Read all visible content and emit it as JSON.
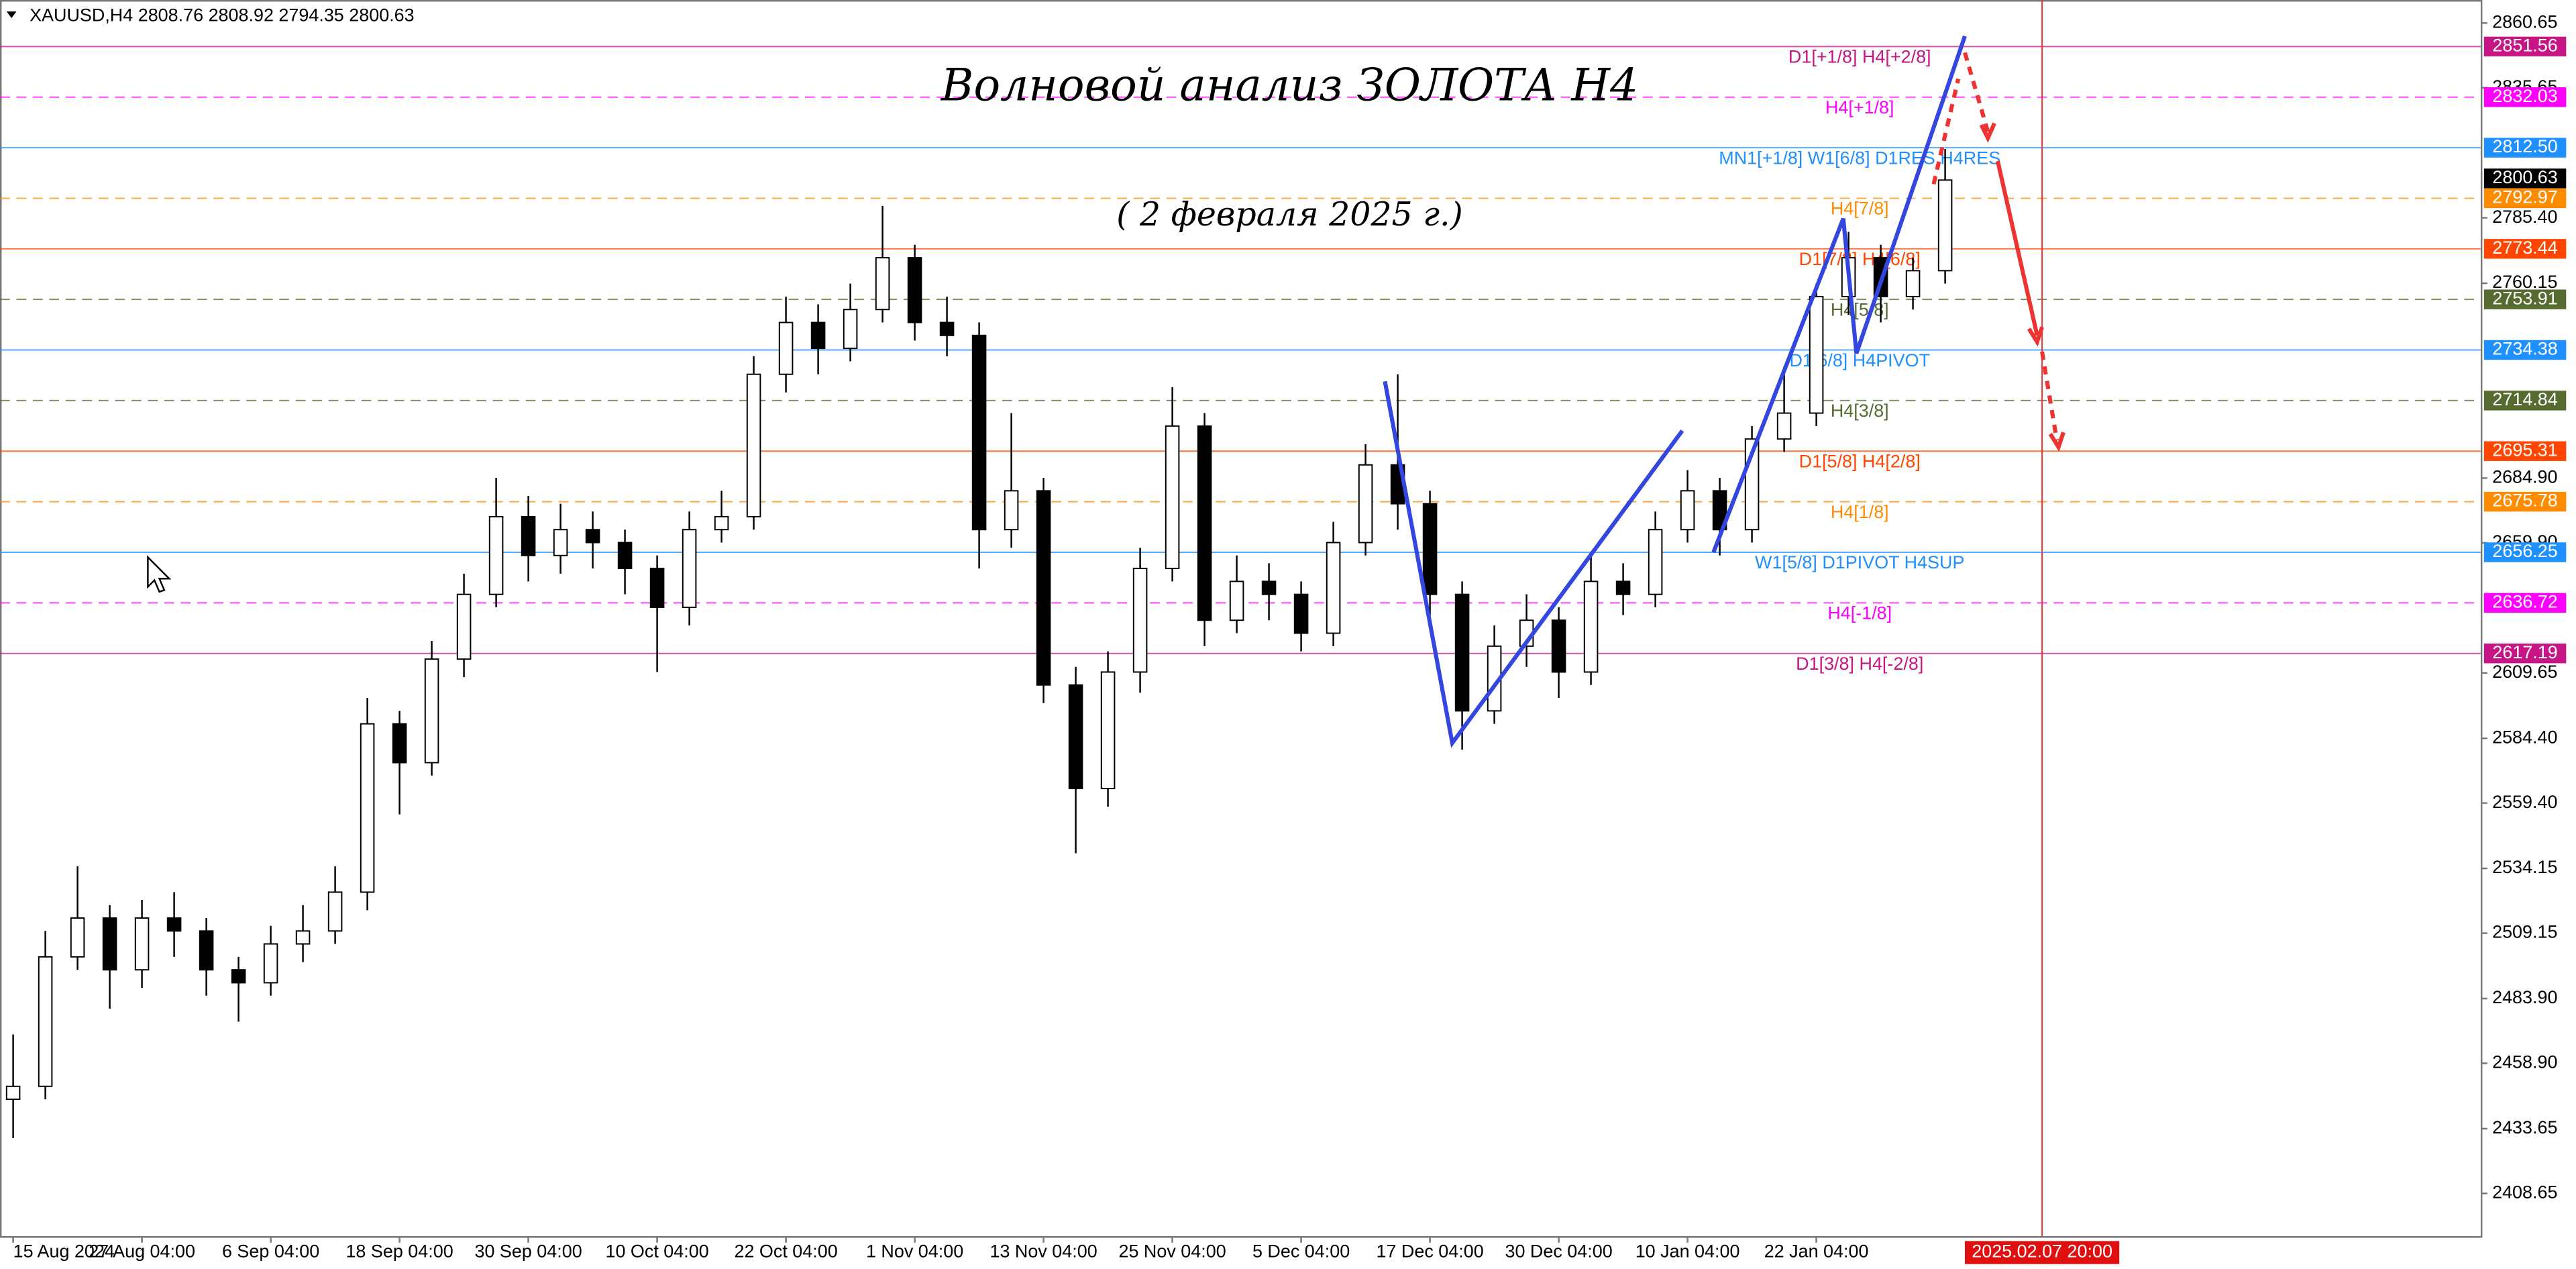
{
  "chart_data": {
    "type": "candlestick",
    "header": "XAUUSD,H4  2808.76 2808.92 2794.35 2800.63",
    "title": "Волновой анализ ЗОЛОТА H4",
    "subtitle": "( 2 февраля 2025 г.)",
    "categories": [
      "15 Aug 2024",
      null,
      null,
      null,
      "27 Aug 04:00",
      null,
      null,
      null,
      "6 Sep 04:00",
      null,
      null,
      null,
      "18 Sep 04:00",
      null,
      null,
      null,
      "30 Sep 04:00",
      null,
      null,
      null,
      "10 Oct 04:00",
      null,
      null,
      null,
      "22 Oct 04:00",
      null,
      null,
      null,
      "1 Nov 04:00",
      null,
      null,
      null,
      "13 Nov 04:00",
      null,
      null,
      null,
      "25 Nov 04:00",
      null,
      null,
      null,
      "5 Dec 04:00",
      null,
      null,
      null,
      "17 Dec 04:00",
      null,
      null,
      null,
      "30 Dec 04:00",
      null,
      null,
      null,
      "10 Jan 04:00",
      null,
      null,
      null,
      "22 Jan 04:00",
      null,
      null,
      null,
      null
    ],
    "open": [
      2445,
      2450,
      2500,
      2515,
      2495,
      2515,
      2510,
      2495,
      2490,
      2505,
      2510,
      2525,
      2590,
      2575,
      2615,
      2640,
      2670,
      2655,
      2665,
      2660,
      2650,
      2635,
      2665,
      2670,
      2725,
      2745,
      2735,
      2750,
      2770,
      2745,
      2740,
      2665,
      2680,
      2605,
      2565,
      2610,
      2650,
      2705,
      2630,
      2645,
      2640,
      2625,
      2660,
      2690,
      2675,
      2640,
      2595,
      2620,
      2630,
      2610,
      2645,
      2640,
      2665,
      2680,
      2665,
      2700,
      2710,
      2755,
      2770,
      2755,
      2765
    ],
    "high": [
      2470,
      2510,
      2535,
      2520,
      2522,
      2525,
      2515,
      2500,
      2512,
      2520,
      2535,
      2600,
      2595,
      2622,
      2648,
      2685,
      2678,
      2675,
      2672,
      2665,
      2655,
      2672,
      2680,
      2732,
      2755,
      2752,
      2760,
      2790,
      2775,
      2755,
      2745,
      2710,
      2685,
      2612,
      2618,
      2658,
      2720,
      2710,
      2655,
      2652,
      2645,
      2668,
      2698,
      2725,
      2680,
      2645,
      2628,
      2640,
      2635,
      2655,
      2652,
      2672,
      2688,
      2685,
      2705,
      2728,
      2760,
      2780,
      2775,
      2770,
      2812
    ],
    "low": [
      2430,
      2445,
      2495,
      2480,
      2488,
      2500,
      2485,
      2475,
      2485,
      2498,
      2505,
      2518,
      2555,
      2570,
      2608,
      2635,
      2645,
      2648,
      2650,
      2640,
      2610,
      2628,
      2660,
      2665,
      2718,
      2725,
      2730,
      2745,
      2738,
      2732,
      2650,
      2658,
      2598,
      2540,
      2558,
      2602,
      2645,
      2620,
      2625,
      2630,
      2618,
      2620,
      2655,
      2665,
      2632,
      2580,
      2590,
      2612,
      2600,
      2605,
      2632,
      2635,
      2660,
      2655,
      2660,
      2695,
      2705,
      2748,
      2745,
      2750,
      2760
    ],
    "close": [
      2450,
      2500,
      2515,
      2495,
      2515,
      2510,
      2495,
      2490,
      2505,
      2510,
      2525,
      2590,
      2575,
      2615,
      2640,
      2670,
      2655,
      2665,
      2660,
      2650,
      2635,
      2665,
      2670,
      2725,
      2745,
      2735,
      2750,
      2770,
      2745,
      2740,
      2665,
      2680,
      2605,
      2565,
      2610,
      2650,
      2705,
      2630,
      2645,
      2640,
      2625,
      2660,
      2690,
      2675,
      2640,
      2595,
      2620,
      2630,
      2610,
      2645,
      2640,
      2665,
      2680,
      2665,
      2700,
      2710,
      2755,
      2770,
      2755,
      2765,
      2800
    ],
    "ylim": [
      2392.15,
      2869.54
    ],
    "yticks": [
      2860.65,
      2835.65,
      {
        "value": 2785.4,
        "label": "2785.40"
      },
      2760.15,
      {
        "value": 2684.9,
        "label": "2684.90"
      },
      {
        "value": 2659.9,
        "label": "2659.90"
      },
      2609.65,
      {
        "value": 2584.4,
        "label": "2584.40"
      },
      {
        "value": 2559.4,
        "label": "2559.40"
      },
      2534.15,
      2509.15,
      {
        "value": 2483.9,
        "label": "2483.90"
      },
      {
        "value": 2458.9,
        "label": "2458.90"
      },
      2433.65,
      2408.65
    ],
    "levels": [
      {
        "label": "D1[+1/8] H4[+2/8]",
        "value": 2851.56,
        "color": "#c71585",
        "style": "solid"
      },
      {
        "label": "H4[+1/8]",
        "value": 2832.03,
        "color": "#ff00ff",
        "style": "dashed"
      },
      {
        "label": "MN1[+1/8] W1[6/8] D1RES H4RES",
        "value": 2812.5,
        "value_label": "2812.50",
        "color": "#1e90ff",
        "style": "solid"
      },
      {
        "label": "H4[7/8]",
        "value": 2792.97,
        "color": "#ff8c00",
        "style": "dashed"
      },
      {
        "label": "D1[7/8] H4[6/8]",
        "value": 2773.44,
        "color": "#ff4500",
        "style": "solid"
      },
      {
        "label": "H4[5/8]",
        "value": 2753.91,
        "color": "#556b2f",
        "style": "dashed"
      },
      {
        "label": "D1[6/8] H4PIVOT",
        "value": 2734.38,
        "color": "#1e90ff",
        "style": "solid"
      },
      {
        "label": "H4[3/8]",
        "value": 2714.84,
        "color": "#556b2f",
        "style": "dashed"
      },
      {
        "label": "D1[5/8] H4[2/8]",
        "value": 2695.31,
        "color": "#ff4500",
        "style": "solid"
      },
      {
        "label": "H4[1/8]",
        "value": 2675.78,
        "color": "#ff8c00",
        "style": "dashed"
      },
      {
        "label": "W1[5/8] D1PIVOT H4SUP",
        "value": 2656.25,
        "color": "#1e90ff",
        "style": "solid"
      },
      {
        "label": "H4[-1/8]",
        "value": 2636.72,
        "color": "#ff00ff",
        "style": "dashed"
      },
      {
        "label": "D1[3/8] H4[-2/8]",
        "value": 2617.19,
        "color": "#c71585",
        "style": "solid"
      }
    ],
    "current_price": 2800.63,
    "cursor_time": "2025.02.07 20:00"
  }
}
